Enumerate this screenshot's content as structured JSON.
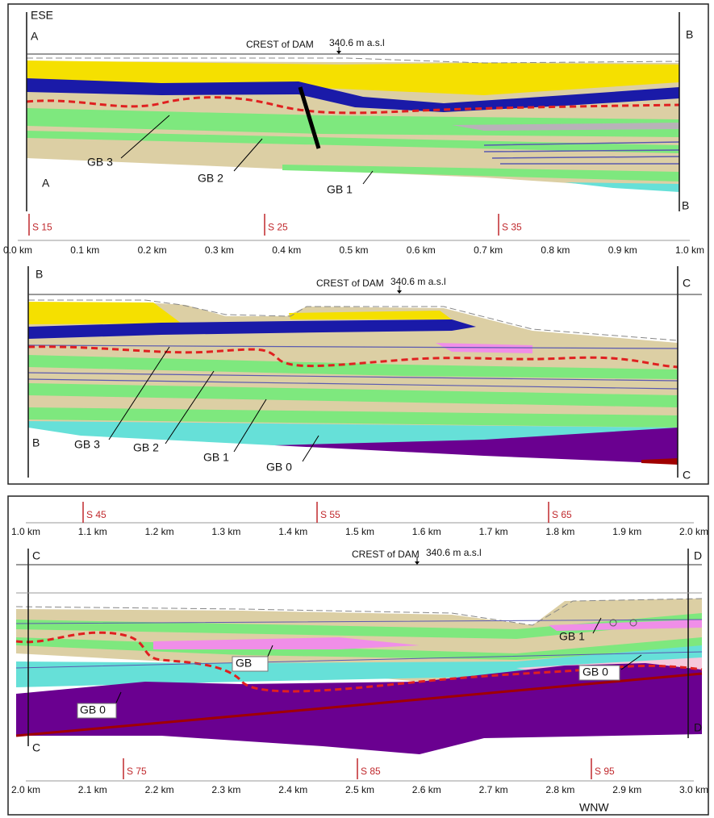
{
  "orientation": {
    "start": "ESE",
    "end": "WNW"
  },
  "crest": {
    "label": "CREST of DAM",
    "elevation": "340.6 m a.s.l"
  },
  "sections": [
    {
      "left": "A",
      "right": "B",
      "units": [
        "GB 3",
        "GB 2",
        "GB 1"
      ]
    },
    {
      "left": "B",
      "right": "C",
      "units": [
        "GB 3",
        "GB 2",
        "GB 1",
        "GB 0"
      ]
    },
    {
      "left": "C",
      "right": "D",
      "units": [
        "GB",
        "GB 1",
        "GB 0",
        "GB 0"
      ]
    }
  ],
  "scales": [
    {
      "stations": [
        "S 15",
        "S 25",
        "S 35"
      ],
      "km": [
        "0.0 km",
        "0.1 km",
        "0.2 km",
        "0.3 km",
        "0.4 km",
        "0.5 km",
        "0.6 km",
        "0.7 km",
        "0.8 km",
        "0.9 km",
        "1.0 km"
      ]
    },
    {
      "stations": [
        "S 45",
        "S 55",
        "S 65"
      ],
      "km": [
        "1.0 km",
        "1.1 km",
        "1.2 km",
        "1.3 km",
        "1.4 km",
        "1.5 km",
        "1.6 km",
        "1.7 km",
        "1.8 km",
        "1.9 km",
        "2.0 km"
      ]
    },
    {
      "stations": [
        "S 75",
        "S 85",
        "S 95"
      ],
      "km": [
        "2.0 km",
        "2.1 km",
        "2.2 km",
        "2.3 km",
        "2.4 km",
        "2.5 km",
        "2.6 km",
        "2.7 km",
        "2.8 km",
        "2.9 km",
        "3.0 km"
      ]
    }
  ]
}
